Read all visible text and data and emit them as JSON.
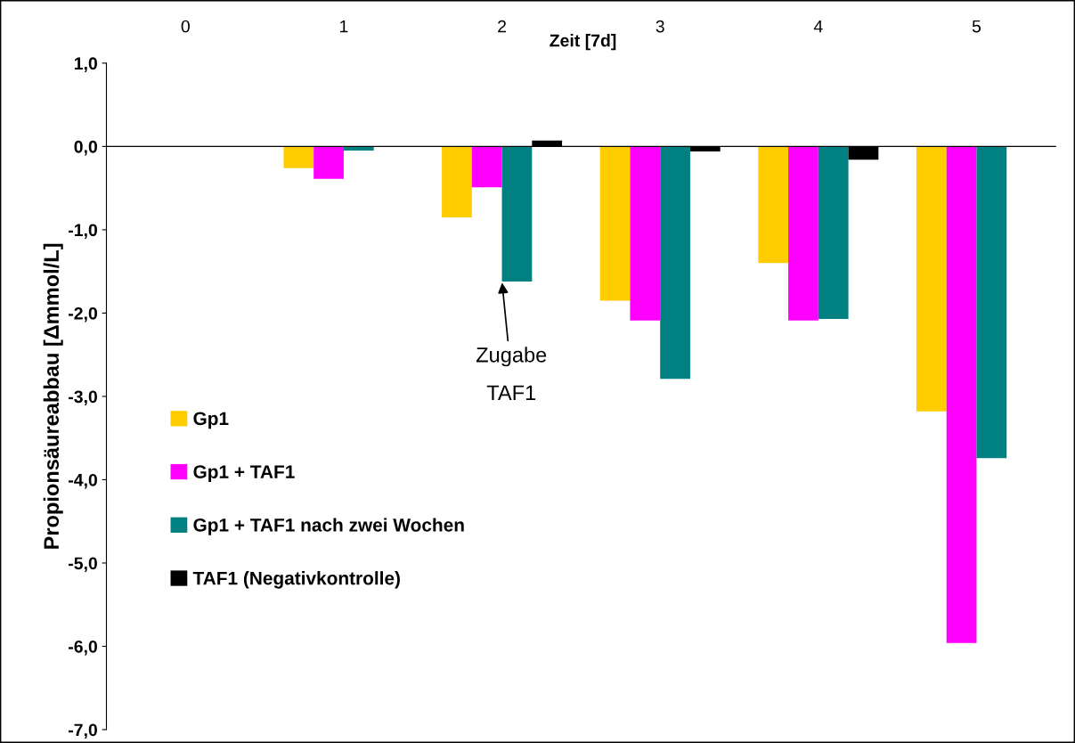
{
  "chart_data": {
    "type": "bar",
    "xlabel": "Zeit [7d]",
    "ylabel": "Propionsäureabbau [Δmmol/L]",
    "categories": [
      "0",
      "1",
      "2",
      "3",
      "4",
      "5"
    ],
    "series": [
      {
        "name": "Gp1",
        "color": "#ffcc00",
        "values": [
          null,
          -0.26,
          -0.85,
          -1.85,
          -1.4,
          -3.18
        ]
      },
      {
        "name": "Gp1 + TAF1",
        "color": "#ff00ff",
        "values": [
          null,
          -0.39,
          -0.49,
          -2.09,
          -2.09,
          -5.96
        ]
      },
      {
        "name": "Gp1 + TAF1 nach zwei Wochen",
        "color": "#008080",
        "values": [
          null,
          -0.05,
          -1.62,
          -2.79,
          -2.07,
          -3.74
        ]
      },
      {
        "name": "TAF1 (Negativkontrolle)",
        "color": "#000000",
        "values": [
          null,
          null,
          0.07,
          -0.06,
          -0.16,
          null
        ]
      }
    ],
    "ylim": [
      -7,
      1
    ],
    "yticks": [
      {
        "value": -7,
        "label": "-7,0"
      },
      {
        "value": -6,
        "label": "-6,0"
      },
      {
        "value": -5,
        "label": "-5,0"
      },
      {
        "value": -4,
        "label": "-4,0"
      },
      {
        "value": -3,
        "label": "-3,0"
      },
      {
        "value": -2,
        "label": "-2,0"
      },
      {
        "value": -1,
        "label": "-1,0"
      },
      {
        "value": 0,
        "label": "0,0"
      },
      {
        "value": 1,
        "label": "1,0"
      }
    ],
    "annotations": [
      {
        "text": "Zugabe\nTAF1",
        "x": "2",
        "y": -1.62
      }
    ],
    "legend": "left"
  }
}
